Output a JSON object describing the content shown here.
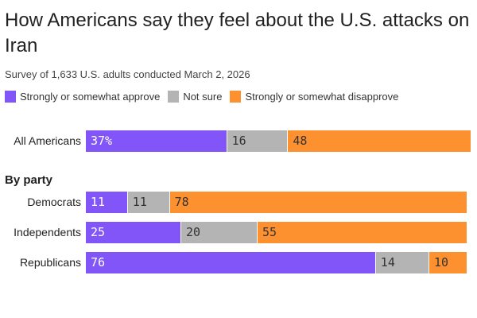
{
  "chart_data": {
    "type": "bar",
    "orientation": "horizontal",
    "stacked": true,
    "title": "How Americans say they feel about the U.S. attacks on Iran",
    "subtitle": "Survey of 1,633 U.S. adults conducted March 2, 2026",
    "group_heading": "By party",
    "legend_position": "top-left",
    "series": [
      {
        "name": "Strongly or somewhat approve",
        "color": "#8155f7"
      },
      {
        "name": "Not sure",
        "color": "#b4b4b4"
      },
      {
        "name": "Strongly or somewhat disapprove",
        "color": "#fd902f"
      }
    ],
    "categories": [
      "All Americans",
      "Democrats",
      "Independents",
      "Republicans"
    ],
    "values": [
      [
        37,
        16,
        48
      ],
      [
        11,
        11,
        78
      ],
      [
        25,
        20,
        55
      ],
      [
        76,
        14,
        10
      ]
    ],
    "first_label_suffix": "%"
  }
}
